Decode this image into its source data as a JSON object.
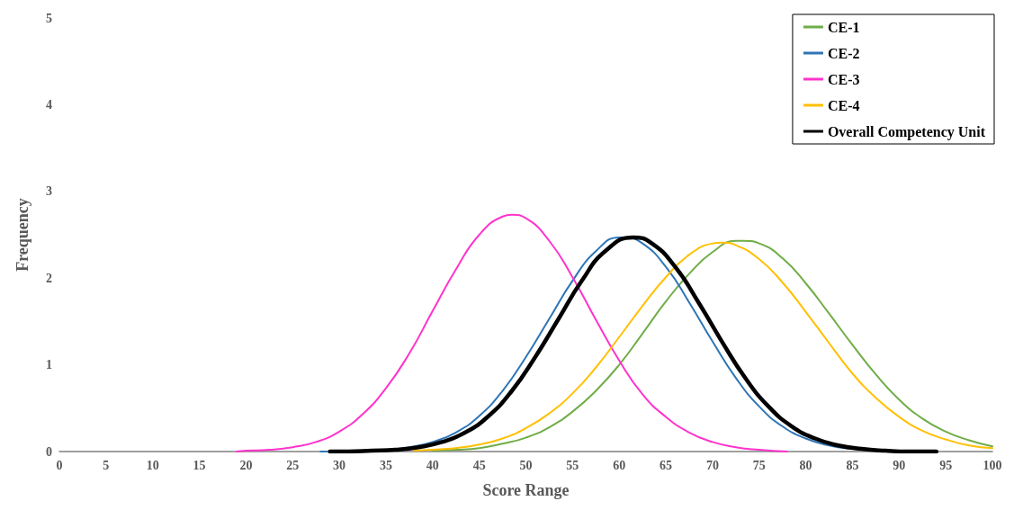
{
  "chart_data": {
    "type": "line",
    "xlabel": "Score Range",
    "ylabel": "Frequency",
    "xlim": [
      0,
      100
    ],
    "xticks": [
      0,
      5,
      10,
      15,
      20,
      25,
      30,
      35,
      40,
      45,
      50,
      55,
      60,
      65,
      70,
      75,
      80,
      85,
      90,
      95,
      100
    ],
    "ylim": [
      0,
      5
    ],
    "yticks": [
      0,
      1,
      2,
      3,
      4,
      5
    ],
    "grid": false,
    "legend": "top right",
    "marker": "none",
    "line_style": "solid",
    "series": [
      {
        "name": "CE-1",
        "color": "#70ad47",
        "x": [
          40,
          42.5,
          45,
          47.5,
          50,
          52.5,
          55,
          57.5,
          60,
          62.5,
          65,
          67.5,
          70,
          72.5,
          73.3,
          75,
          77.5,
          80,
          82.5,
          85,
          87.5,
          90,
          92.5,
          95,
          97.5,
          100
        ],
        "values": [
          0.01,
          0.02,
          0.04,
          0.09,
          0.16,
          0.28,
          0.46,
          0.7,
          1.0,
          1.36,
          1.73,
          2.05,
          2.3,
          2.43,
          2.43,
          2.4,
          2.23,
          1.94,
          1.59,
          1.23,
          0.89,
          0.6,
          0.38,
          0.23,
          0.13,
          0.06
        ]
      },
      {
        "name": "CE-2",
        "color": "#2e75b6",
        "x": [
          28,
          30,
          32.5,
          35,
          37.5,
          40,
          42.5,
          45,
          47.5,
          50,
          52.5,
          55,
          57.5,
          60,
          60.5,
          62.5,
          65,
          67.5,
          70,
          72.5,
          75,
          77.5,
          80,
          82.5,
          85,
          87.5
        ],
        "values": [
          0.0,
          0.0,
          0.01,
          0.02,
          0.05,
          0.11,
          0.22,
          0.41,
          0.7,
          1.09,
          1.53,
          1.97,
          2.31,
          2.47,
          2.47,
          2.4,
          2.13,
          1.72,
          1.27,
          0.85,
          0.52,
          0.29,
          0.15,
          0.07,
          0.03,
          0.01
        ]
      },
      {
        "name": "CE-3",
        "color": "#ff33cc",
        "x": [
          19,
          20,
          22.5,
          25,
          27.5,
          30,
          32.5,
          35,
          37.5,
          40,
          42.5,
          45,
          47.5,
          48.5,
          50,
          52.5,
          55,
          57.5,
          60,
          62.5,
          65,
          67.5,
          70,
          72.5,
          75,
          78
        ],
        "values": [
          0.0,
          0.01,
          0.02,
          0.05,
          0.11,
          0.23,
          0.43,
          0.73,
          1.13,
          1.62,
          2.1,
          2.5,
          2.71,
          2.73,
          2.69,
          2.43,
          2.01,
          1.52,
          1.05,
          0.66,
          0.4,
          0.22,
          0.11,
          0.05,
          0.02,
          0.0
        ]
      },
      {
        "name": "CE-4",
        "color": "#ffc000",
        "x": [
          38,
          40,
          42.5,
          45,
          47.5,
          50,
          52.5,
          55,
          57.5,
          60,
          62.5,
          65,
          67.5,
          70,
          71,
          72.5,
          75,
          77.5,
          80,
          82.5,
          85,
          87.5,
          90,
          92.5,
          95,
          97.5,
          100
        ],
        "values": [
          0.01,
          0.02,
          0.04,
          0.08,
          0.15,
          0.27,
          0.44,
          0.67,
          0.97,
          1.32,
          1.68,
          2.01,
          2.27,
          2.4,
          2.41,
          2.38,
          2.22,
          1.95,
          1.61,
          1.25,
          0.9,
          0.62,
          0.4,
          0.24,
          0.14,
          0.07,
          0.04
        ]
      },
      {
        "name": "Overall Competency Unit",
        "color": "#000000",
        "x": [
          29,
          31,
          33.5,
          36,
          38.5,
          41,
          43.5,
          46,
          48.5,
          51,
          53.5,
          56,
          58.5,
          61.5,
          63.5,
          66,
          68.5,
          71,
          73.5,
          76,
          78.5,
          81,
          83.5,
          86,
          88.5,
          91,
          94
        ],
        "values": [
          0.0,
          0.0,
          0.01,
          0.02,
          0.05,
          0.11,
          0.22,
          0.41,
          0.7,
          1.09,
          1.53,
          1.97,
          2.31,
          2.47,
          2.4,
          2.13,
          1.72,
          1.27,
          0.85,
          0.52,
          0.29,
          0.15,
          0.07,
          0.03,
          0.01,
          0.0,
          0.0
        ]
      }
    ]
  }
}
